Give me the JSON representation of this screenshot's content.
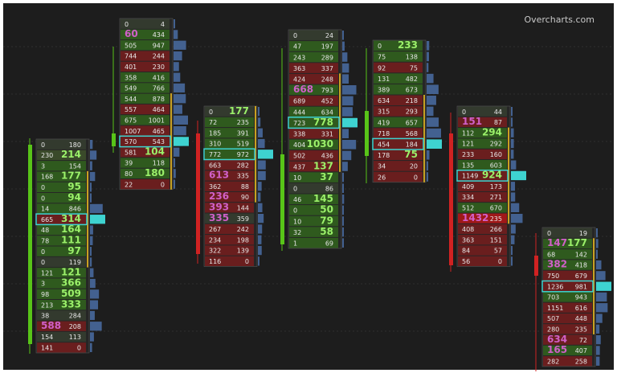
{
  "brand": "Overcharts.com",
  "colors": {
    "background": "#1d1d1d",
    "grid": "#2e2e2e",
    "bid_dominant": "#2f5a1e",
    "ask_dominant": "#6a1e1e",
    "neutral": "#333a2e",
    "volume_bar": "#4a6da4",
    "poc_highlight": "#3ed3d0",
    "candle_up": "#58c418",
    "candle_down": "#d02222",
    "big_bid_text": "#d060c8",
    "big_ask_text": "#9bf06a"
  },
  "chart_data": {
    "type": "footprint",
    "title": "",
    "candles": [
      {
        "direction": "up",
        "poc_index": 7,
        "rows": [
          {
            "bid": "0",
            "ask": "180",
            "tone": "n"
          },
          {
            "bid": "230",
            "ask": "214",
            "tone": "b",
            "big": "ask"
          },
          {
            "bid": "3",
            "ask": "154",
            "tone": "g"
          },
          {
            "bid": "168",
            "ask": "177",
            "tone": "g",
            "big": "ask"
          },
          {
            "bid": "0",
            "ask": "95",
            "tone": "g",
            "big": "ask"
          },
          {
            "bid": "0",
            "ask": "94",
            "tone": "g",
            "big": "ask"
          },
          {
            "bid": "14",
            "ask": "846",
            "tone": "g"
          },
          {
            "bid": "665",
            "ask": "314",
            "tone": "r",
            "big": "ask"
          },
          {
            "bid": "48",
            "ask": "164",
            "tone": "g",
            "big": "ask"
          },
          {
            "bid": "78",
            "ask": "111",
            "tone": "g",
            "big": "ask"
          },
          {
            "bid": "0",
            "ask": "97",
            "tone": "g",
            "big": "ask"
          },
          {
            "bid": "0",
            "ask": "119",
            "tone": "n"
          },
          {
            "bid": "121",
            "ask": "121",
            "tone": "g",
            "big": "ask"
          },
          {
            "bid": "3",
            "ask": "366",
            "tone": "g",
            "big": "ask"
          },
          {
            "bid": "98",
            "ask": "509",
            "tone": "g",
            "big": "ask"
          },
          {
            "bid": "213",
            "ask": "333",
            "tone": "g",
            "big": "ask"
          },
          {
            "bid": "38",
            "ask": "284",
            "tone": "n"
          },
          {
            "bid": "588",
            "ask": "208",
            "tone": "r",
            "big": "bid"
          },
          {
            "bid": "154",
            "ask": "113",
            "tone": "n"
          },
          {
            "bid": "141",
            "ask": "0",
            "tone": "r"
          }
        ]
      },
      {
        "direction": "up",
        "poc_index": 11,
        "rows": [
          {
            "bid": "0",
            "ask": "4",
            "tone": "n"
          },
          {
            "bid": "60",
            "ask": "434",
            "tone": "g",
            "big": "bid"
          },
          {
            "bid": "505",
            "ask": "947",
            "tone": "g"
          },
          {
            "bid": "744",
            "ask": "244",
            "tone": "r"
          },
          {
            "bid": "401",
            "ask": "230",
            "tone": "r"
          },
          {
            "bid": "358",
            "ask": "416",
            "tone": "g"
          },
          {
            "bid": "549",
            "ask": "766",
            "tone": "g"
          },
          {
            "bid": "544",
            "ask": "878",
            "tone": "g"
          },
          {
            "bid": "557",
            "ask": "464",
            "tone": "r"
          },
          {
            "bid": "675",
            "ask": "1001",
            "tone": "g"
          },
          {
            "bid": "1007",
            "ask": "465",
            "tone": "r"
          },
          {
            "bid": "570",
            "ask": "543",
            "tone": "r"
          },
          {
            "bid": "581",
            "ask": "104",
            "tone": "r",
            "big": "ask"
          },
          {
            "bid": "39",
            "ask": "118",
            "tone": "g"
          },
          {
            "bid": "80",
            "ask": "180",
            "tone": "g",
            "big": "ask"
          },
          {
            "bid": "22",
            "ask": "0",
            "tone": "r"
          }
        ]
      },
      {
        "direction": "down",
        "poc_index": 4,
        "rows": [
          {
            "bid": "0",
            "ask": "177",
            "tone": "n",
            "big": "ask"
          },
          {
            "bid": "72",
            "ask": "235",
            "tone": "g"
          },
          {
            "bid": "185",
            "ask": "391",
            "tone": "g"
          },
          {
            "bid": "310",
            "ask": "519",
            "tone": "g"
          },
          {
            "bid": "772",
            "ask": "972",
            "tone": "g"
          },
          {
            "bid": "663",
            "ask": "282",
            "tone": "r"
          },
          {
            "bid": "613",
            "ask": "335",
            "tone": "r",
            "big": "bid"
          },
          {
            "bid": "362",
            "ask": "88",
            "tone": "r"
          },
          {
            "bid": "236",
            "ask": "90",
            "tone": "r",
            "big": "bid"
          },
          {
            "bid": "393",
            "ask": "144",
            "tone": "r",
            "big": "bid"
          },
          {
            "bid": "335",
            "ask": "359",
            "tone": "n",
            "big": "bid"
          },
          {
            "bid": "267",
            "ask": "242",
            "tone": "r"
          },
          {
            "bid": "234",
            "ask": "198",
            "tone": "r"
          },
          {
            "bid": "322",
            "ask": "139",
            "tone": "r"
          },
          {
            "bid": "116",
            "ask": "0",
            "tone": "r"
          }
        ]
      },
      {
        "direction": "up",
        "poc_index": 8,
        "rows": [
          {
            "bid": "0",
            "ask": "24",
            "tone": "n"
          },
          {
            "bid": "47",
            "ask": "197",
            "tone": "g"
          },
          {
            "bid": "243",
            "ask": "289",
            "tone": "g"
          },
          {
            "bid": "363",
            "ask": "337",
            "tone": "r"
          },
          {
            "bid": "424",
            "ask": "248",
            "tone": "r"
          },
          {
            "bid": "668",
            "ask": "793",
            "tone": "g",
            "big": "bid"
          },
          {
            "bid": "689",
            "ask": "452",
            "tone": "r"
          },
          {
            "bid": "444",
            "ask": "634",
            "tone": "g"
          },
          {
            "bid": "723",
            "ask": "778",
            "tone": "g",
            "big": "ask"
          },
          {
            "bid": "338",
            "ask": "331",
            "tone": "r"
          },
          {
            "bid": "404",
            "ask": "1030",
            "tone": "g",
            "big": "ask"
          },
          {
            "bid": "502",
            "ask": "436",
            "tone": "r"
          },
          {
            "bid": "437",
            "ask": "137",
            "tone": "r",
            "big": "ask"
          },
          {
            "bid": "10",
            "ask": "37",
            "tone": "g",
            "big": "ask"
          },
          {
            "bid": "0",
            "ask": "86",
            "tone": "n"
          },
          {
            "bid": "46",
            "ask": "145",
            "tone": "g",
            "big": "ask"
          },
          {
            "bid": "0",
            "ask": "50",
            "tone": "g",
            "big": "ask"
          },
          {
            "bid": "10",
            "ask": "79",
            "tone": "g",
            "big": "ask"
          },
          {
            "bid": "32",
            "ask": "58",
            "tone": "g",
            "big": "ask"
          },
          {
            "bid": "1",
            "ask": "69",
            "tone": "g"
          }
        ]
      },
      {
        "direction": "up",
        "poc_index": 9,
        "rows": [
          {
            "bid": "0",
            "ask": "233",
            "tone": "g",
            "big": "ask"
          },
          {
            "bid": "75",
            "ask": "138",
            "tone": "g"
          },
          {
            "bid": "92",
            "ask": "75",
            "tone": "r"
          },
          {
            "bid": "131",
            "ask": "482",
            "tone": "g"
          },
          {
            "bid": "389",
            "ask": "673",
            "tone": "g"
          },
          {
            "bid": "634",
            "ask": "218",
            "tone": "r"
          },
          {
            "bid": "315",
            "ask": "293",
            "tone": "r"
          },
          {
            "bid": "419",
            "ask": "657",
            "tone": "g"
          },
          {
            "bid": "718",
            "ask": "568",
            "tone": "r"
          },
          {
            "bid": "454",
            "ask": "184",
            "tone": "r"
          },
          {
            "bid": "178",
            "ask": "75",
            "tone": "r",
            "big": "ask"
          },
          {
            "bid": "34",
            "ask": "20",
            "tone": "r"
          },
          {
            "bid": "26",
            "ask": "0",
            "tone": "r"
          }
        ]
      },
      {
        "direction": "down",
        "poc_index": 6,
        "rows": [
          {
            "bid": "0",
            "ask": "44",
            "tone": "n"
          },
          {
            "bid": "151",
            "ask": "87",
            "tone": "r",
            "big": "bid"
          },
          {
            "bid": "112",
            "ask": "294",
            "tone": "g",
            "big": "ask"
          },
          {
            "bid": "121",
            "ask": "292",
            "tone": "g"
          },
          {
            "bid": "233",
            "ask": "160",
            "tone": "r"
          },
          {
            "bid": "135",
            "ask": "603",
            "tone": "g"
          },
          {
            "bid": "1149",
            "ask": "924",
            "tone": "r",
            "big": "ask"
          },
          {
            "bid": "409",
            "ask": "173",
            "tone": "r"
          },
          {
            "bid": "334",
            "ask": "271",
            "tone": "r"
          },
          {
            "bid": "512",
            "ask": "670",
            "tone": "g"
          },
          {
            "bid": "1432",
            "ask": "235",
            "tone": "rs",
            "big": "bid"
          },
          {
            "bid": "408",
            "ask": "266",
            "tone": "r"
          },
          {
            "bid": "363",
            "ask": "151",
            "tone": "r"
          },
          {
            "bid": "84",
            "ask": "57",
            "tone": "r"
          },
          {
            "bid": "56",
            "ask": "0",
            "tone": "r"
          }
        ]
      },
      {
        "direction": "down",
        "poc_index": 5,
        "rows": [
          {
            "bid": "0",
            "ask": "19",
            "tone": "n"
          },
          {
            "bid": "147",
            "ask": "177",
            "tone": "g",
            "big": "both"
          },
          {
            "bid": "68",
            "ask": "142",
            "tone": "g"
          },
          {
            "bid": "382",
            "ask": "418",
            "tone": "g",
            "big": "bid"
          },
          {
            "bid": "750",
            "ask": "679",
            "tone": "r"
          },
          {
            "bid": "1236",
            "ask": "981",
            "tone": "r"
          },
          {
            "bid": "703",
            "ask": "943",
            "tone": "g"
          },
          {
            "bid": "1151",
            "ask": "616",
            "tone": "r"
          },
          {
            "bid": "507",
            "ask": "448",
            "tone": "r"
          },
          {
            "bid": "280",
            "ask": "235",
            "tone": "r"
          },
          {
            "bid": "634",
            "ask": "72",
            "tone": "r",
            "big": "bid"
          },
          {
            "bid": "165",
            "ask": "407",
            "tone": "g",
            "big": "bid"
          },
          {
            "bid": "282",
            "ask": "258",
            "tone": "r"
          }
        ]
      }
    ]
  }
}
